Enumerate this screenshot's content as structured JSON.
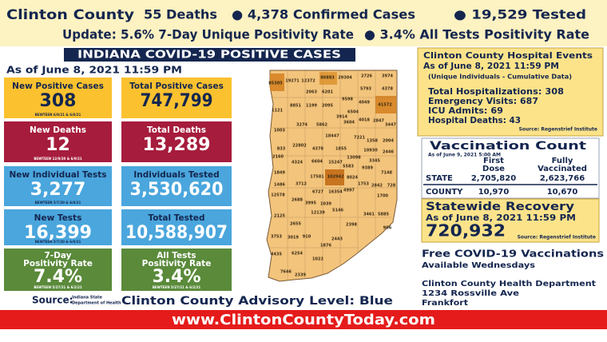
{
  "header": {
    "line1": [
      "Clinton County",
      "55 Deaths",
      "● 4,378 Confirmed Cases",
      "● 19,529 Tested"
    ],
    "line2": [
      "Update: 5.6% 7-Day Unique Positivity Rate",
      "● 3.4% All Tests Positivity Rate"
    ]
  },
  "title_bar": "INDIANA COVID-19 POSITIVE CASES",
  "as_of": "As of June 8, 2021 11:59 PM",
  "stats": [
    {
      "left": {
        "title": [
          "New Positive Cases"
        ],
        "value": "308",
        "note": "BEWTEEN 6/8/21 & 6/8/21"
      },
      "right": {
        "title": [
          "Total Positive Cases"
        ],
        "value": "747,799"
      }
    },
    {
      "left": {
        "title": [
          "New Deaths"
        ],
        "value": "12",
        "note": "BEWTEEN 12/9/20 & 6/9/21"
      },
      "right": {
        "title": [
          "Total Deaths"
        ],
        "value": "13,289"
      }
    },
    {
      "left": {
        "title": [
          "New Individual Tests"
        ],
        "value": "3,277",
        "note": "BEWTEEN 5/7/20 & 6/8/21"
      },
      "right": {
        "title": [
          "Individuals Tested"
        ],
        "value": "3,530,620"
      }
    },
    {
      "left": {
        "title": [
          "New Tests"
        ],
        "value": "16,399",
        "note": "BEWTEEN 5/7/20 & 6/8/21"
      },
      "right": {
        "title": [
          "Total Tested"
        ],
        "value": "10,588,907"
      }
    },
    {
      "left": {
        "title": [
          "7-Day",
          "Positivity Rate"
        ],
        "value": "7.4%",
        "note": "BEWTEEN 5/27/21 & 6/2/21"
      },
      "right": {
        "title": [
          "All Tests",
          "Positivity Rate"
        ],
        "value": "3.4%",
        "note": "BEWTEEN 5/27/21 & 6/2/21"
      }
    }
  ],
  "map_labels": [
    "85305",
    "19271",
    "12372",
    "86883",
    "29304",
    "2726",
    "3974",
    "2063",
    "6201",
    "5793",
    "4378",
    "8851",
    "1199",
    "2095",
    "9598",
    "4049",
    "41572",
    "1121",
    "3914",
    "6504",
    "3274",
    "5862",
    "3604",
    "4018",
    "2847",
    "3447",
    "1003",
    "18447",
    "7221",
    "1358",
    "2004",
    "22802",
    "4378",
    "1855",
    "10930",
    "2446",
    "833",
    "2160",
    "4324",
    "6604",
    "15247",
    "13098",
    "3345",
    "1849",
    "5583",
    "9389",
    "7148",
    "17581",
    "102942",
    "8024",
    "3712",
    "1753",
    "2842",
    "728",
    "1486",
    "12578",
    "6727",
    "16354",
    "4997",
    "2688",
    "3995",
    "1039",
    "5146",
    "1700",
    "2125",
    "12139",
    "3461",
    "5885",
    "2655",
    "2398",
    "906",
    "3753",
    "3019",
    "910",
    "1876",
    "2443",
    "4435",
    "6254",
    "1022",
    "7646",
    "2339"
  ],
  "source": {
    "label": "Source:",
    "logo": [
      "Indiana State",
      "Department of Health"
    ]
  },
  "advisory": "Clinton County Advisory Level: Blue",
  "website": "www.ClintonCountyToday.com",
  "hospital": {
    "title": "Clinton County Hospital Events",
    "as_of": "As of June 8, 2021 11:59 PM",
    "note": "(Unique Individuals - Cumulative Data)",
    "lines": [
      "Total Hospitalizations: 308",
      "Emergency Visits: 687",
      "ICU Admits: 69",
      "Hospital Deaths: 43"
    ],
    "source": "Source: Regenstrief Institute"
  },
  "vaccination": {
    "title": "Vaccination Count",
    "as_of": "As of June 9, 2021 5:00 AM",
    "columns": [
      [
        "First",
        "Dose"
      ],
      [
        "Fully",
        "Vaccinated"
      ]
    ],
    "rows": [
      [
        "STATE",
        "2,705,820",
        "2,623,766"
      ],
      [
        "COUNTY",
        "10,970",
        "10,670"
      ]
    ]
  },
  "recovery": {
    "title": "Statewide Recovery",
    "as_of": "As of June 8, 2021 11:59 PM",
    "value": "720,932",
    "source": "Source: Regenstrief Institute"
  },
  "info": {
    "vaccine": [
      "Free COVID-19 Vaccinations",
      "Available Wednesdays"
    ],
    "address": [
      "Clinton County Health Department",
      "1234 Rossville Ave",
      "Frankfort"
    ]
  }
}
